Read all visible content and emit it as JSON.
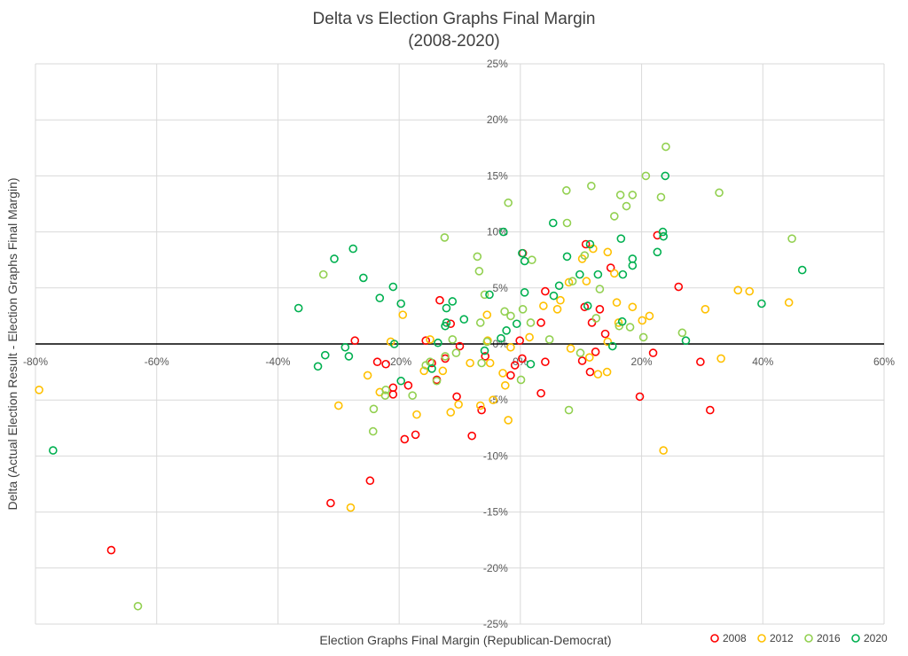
{
  "chart_data": {
    "type": "scatter",
    "title": [
      "Delta vs Election Graphs Final Margin",
      "(2008-2020)"
    ],
    "xlabel": "Election Graphs Final Margin (Republican-Democrat)",
    "ylabel": "Delta (Actual Election Result - Election Graphs Final Margin)",
    "xlim": [
      -80,
      60
    ],
    "ylim": [
      -25,
      25
    ],
    "x_ticks": [
      -80,
      -60,
      -40,
      -20,
      0,
      20,
      40,
      60
    ],
    "x_tick_labels": [
      "-80%",
      "-60%",
      "-40%",
      "-20%",
      "0%",
      "20%",
      "40%",
      "60%"
    ],
    "y_ticks": [
      -25,
      -20,
      -15,
      -10,
      -5,
      0,
      5,
      10,
      15,
      20,
      25
    ],
    "y_tick_labels": [
      "-25%",
      "-20%",
      "-15%",
      "-10%",
      "-5%",
      "0%",
      "5%",
      "10%",
      "15%",
      "20%",
      "25%"
    ],
    "grid": true,
    "legend_position": "bottom-right",
    "units": "percent",
    "series": [
      {
        "name": "2008",
        "color": "#FF0000",
        "points": [
          [
            -31.3,
            -14.2
          ],
          [
            -67.5,
            -18.4
          ],
          [
            -24.8,
            -12.2
          ],
          [
            -27.3,
            0.3
          ],
          [
            -23.6,
            -1.6
          ],
          [
            -22.2,
            -1.8
          ],
          [
            -21,
            -3.9
          ],
          [
            -21,
            -4.5
          ],
          [
            -18.5,
            -3.7
          ],
          [
            -19.1,
            -8.5
          ],
          [
            -17.3,
            -8.1
          ],
          [
            -15.6,
            0.3
          ],
          [
            -14.6,
            -1.7
          ],
          [
            -13.8,
            -3.2
          ],
          [
            -13.3,
            3.9
          ],
          [
            -12.4,
            -1.3
          ],
          [
            -11.5,
            1.8
          ],
          [
            -10.5,
            -4.7
          ],
          [
            -10,
            -0.2
          ],
          [
            -8,
            -8.2
          ],
          [
            -6.4,
            -5.9
          ],
          [
            -5.8,
            -1.1
          ],
          [
            -1.6,
            -2.8
          ],
          [
            -0.9,
            -1.9
          ],
          [
            -0.1,
            0.3
          ],
          [
            0.3,
            -1.3
          ],
          [
            0.4,
            8.1
          ],
          [
            3.4,
            -4.4
          ],
          [
            3.4,
            1.9
          ],
          [
            4.1,
            4.7
          ],
          [
            4.1,
            -1.6
          ],
          [
            10.6,
            3.3
          ],
          [
            10.2,
            -1.5
          ],
          [
            10.8,
            8.9
          ],
          [
            11.5,
            -2.5
          ],
          [
            11.8,
            1.9
          ],
          [
            12.4,
            -0.7
          ],
          [
            13.1,
            3.1
          ],
          [
            14,
            0.9
          ],
          [
            14.9,
            6.8
          ],
          [
            19.7,
            -4.7
          ],
          [
            21.9,
            -0.8
          ],
          [
            22.6,
            9.7
          ],
          [
            26.1,
            5.1
          ],
          [
            29.7,
            -1.6
          ],
          [
            31.3,
            -5.9
          ]
        ]
      },
      {
        "name": "2012",
        "color": "#FFC000",
        "points": [
          [
            -79.4,
            -4.1
          ],
          [
            -28,
            -14.6
          ],
          [
            -30,
            -5.5
          ],
          [
            -25.2,
            -2.8
          ],
          [
            -23.2,
            -4.3
          ],
          [
            -21.4,
            0.2
          ],
          [
            -19.4,
            2.6
          ],
          [
            -17.1,
            -6.3
          ],
          [
            -15.9,
            -2.4
          ],
          [
            -14.9,
            0.4
          ],
          [
            -12.8,
            -2.4
          ],
          [
            -11.5,
            -6.1
          ],
          [
            -10.2,
            -5.4
          ],
          [
            -8.3,
            -1.7
          ],
          [
            -6.6,
            -5.5
          ],
          [
            -5.5,
            2.6
          ],
          [
            -5.4,
            0.3
          ],
          [
            -5,
            -1.7
          ],
          [
            -4.5,
            -5
          ],
          [
            -2.9,
            -2.6
          ],
          [
            -2.5,
            -3.7
          ],
          [
            -2,
            -6.8
          ],
          [
            -1.6,
            -0.3
          ],
          [
            1.5,
            0.6
          ],
          [
            3.8,
            3.4
          ],
          [
            6.1,
            3.1
          ],
          [
            6.6,
            3.9
          ],
          [
            8.3,
            -0.4
          ],
          [
            8,
            5.5
          ],
          [
            10.2,
            7.6
          ],
          [
            10.9,
            5.6
          ],
          [
            12,
            8.5
          ],
          [
            11.4,
            -1.2
          ],
          [
            12.8,
            -2.7
          ],
          [
            14.4,
            0.2
          ],
          [
            14.3,
            -2.5
          ],
          [
            14.4,
            8.2
          ],
          [
            15.5,
            6.3
          ],
          [
            15.9,
            3.7
          ],
          [
            16.2,
            1.9
          ],
          [
            18.5,
            3.3
          ],
          [
            20.1,
            2.1
          ],
          [
            21.3,
            2.5
          ],
          [
            30.5,
            3.1
          ],
          [
            33.1,
            -1.3
          ],
          [
            23.6,
            -9.5
          ],
          [
            35.9,
            4.8
          ],
          [
            37.8,
            4.7
          ],
          [
            44.3,
            3.7
          ]
        ]
      },
      {
        "name": "2016",
        "color": "#92D050",
        "points": [
          [
            -63.1,
            -23.4
          ],
          [
            -32.5,
            6.2
          ],
          [
            -24.2,
            -5.8
          ],
          [
            -24.3,
            -7.8
          ],
          [
            -22.3,
            -4.6
          ],
          [
            -22.2,
            -4.1
          ],
          [
            -17.8,
            -4.6
          ],
          [
            -15.6,
            -1.9
          ],
          [
            -14.9,
            -1.6
          ],
          [
            -13.8,
            -3.3
          ],
          [
            -12.5,
            9.5
          ],
          [
            -12.4,
            -1.1
          ],
          [
            -11.2,
            0.4
          ],
          [
            -10.6,
            -0.8
          ],
          [
            -7.1,
            7.8
          ],
          [
            -6.8,
            6.5
          ],
          [
            -5.9,
            4.4
          ],
          [
            -6.6,
            1.9
          ],
          [
            -5.5,
            0.2
          ],
          [
            -6.4,
            -1.7
          ],
          [
            -2,
            12.6
          ],
          [
            -2.6,
            2.9
          ],
          [
            -1.6,
            2.5
          ],
          [
            0.1,
            -3.2
          ],
          [
            0.4,
            3.1
          ],
          [
            1.9,
            7.5
          ],
          [
            1.7,
            1.9
          ],
          [
            4.8,
            0.4
          ],
          [
            7.6,
            13.7
          ],
          [
            7.7,
            10.8
          ],
          [
            8.6,
            5.6
          ],
          [
            8,
            -5.9
          ],
          [
            9.9,
            -0.8
          ],
          [
            10.6,
            7.9
          ],
          [
            11.7,
            14.1
          ],
          [
            12.5,
            2.3
          ],
          [
            13.1,
            4.9
          ],
          [
            15.5,
            11.4
          ],
          [
            16.5,
            13.3
          ],
          [
            18.5,
            13.3
          ],
          [
            17.5,
            12.3
          ],
          [
            16.3,
            1.6
          ],
          [
            18.1,
            1.5
          ],
          [
            20.3,
            0.6
          ],
          [
            20.7,
            15
          ],
          [
            23.2,
            13.1
          ],
          [
            24,
            17.6
          ],
          [
            26.7,
            1
          ],
          [
            32.8,
            13.5
          ],
          [
            44.8,
            9.4
          ]
        ]
      },
      {
        "name": "2020",
        "color": "#00B050",
        "points": [
          [
            -77.1,
            -9.5
          ],
          [
            -36.6,
            3.2
          ],
          [
            -33.4,
            -2
          ],
          [
            -32.2,
            -1
          ],
          [
            -30.7,
            7.6
          ],
          [
            -28.9,
            -0.3
          ],
          [
            -28.3,
            -1.1
          ],
          [
            -27.6,
            8.5
          ],
          [
            -25.9,
            5.9
          ],
          [
            -23.2,
            4.1
          ],
          [
            -21,
            5.1
          ],
          [
            -20.8,
            0
          ],
          [
            -19.7,
            3.6
          ],
          [
            -19.7,
            -3.3
          ],
          [
            -13.6,
            0.1
          ],
          [
            -12.2,
            3.2
          ],
          [
            -12.2,
            1.9
          ],
          [
            -12.4,
            1.6
          ],
          [
            -11.2,
            3.8
          ],
          [
            -9.3,
            2.2
          ],
          [
            -14.6,
            -2.2
          ],
          [
            -5.9,
            -0.6
          ],
          [
            -5.1,
            4.4
          ],
          [
            -3.2,
            0.5
          ],
          [
            -2.8,
            10
          ],
          [
            -2.3,
            1.2
          ],
          [
            -0.6,
            1.8
          ],
          [
            0.3,
            8.1
          ],
          [
            0.7,
            7.4
          ],
          [
            0.7,
            4.6
          ],
          [
            1.7,
            -1.8
          ],
          [
            5.4,
            10.8
          ],
          [
            5.5,
            4.3
          ],
          [
            6.4,
            5.2
          ],
          [
            7.7,
            7.8
          ],
          [
            9.8,
            6.2
          ],
          [
            11.1,
            3.4
          ],
          [
            11.5,
            8.9
          ],
          [
            12.8,
            6.2
          ],
          [
            15.2,
            -0.2
          ],
          [
            16.6,
            9.4
          ],
          [
            16.8,
            2
          ],
          [
            16.9,
            6.2
          ],
          [
            18.5,
            7.6
          ],
          [
            18.5,
            7
          ],
          [
            22.6,
            8.2
          ],
          [
            23.5,
            10
          ],
          [
            23.6,
            9.6
          ],
          [
            23.9,
            15
          ],
          [
            27.3,
            0.3
          ],
          [
            39.8,
            3.6
          ],
          [
            46.5,
            6.6
          ]
        ]
      }
    ]
  }
}
